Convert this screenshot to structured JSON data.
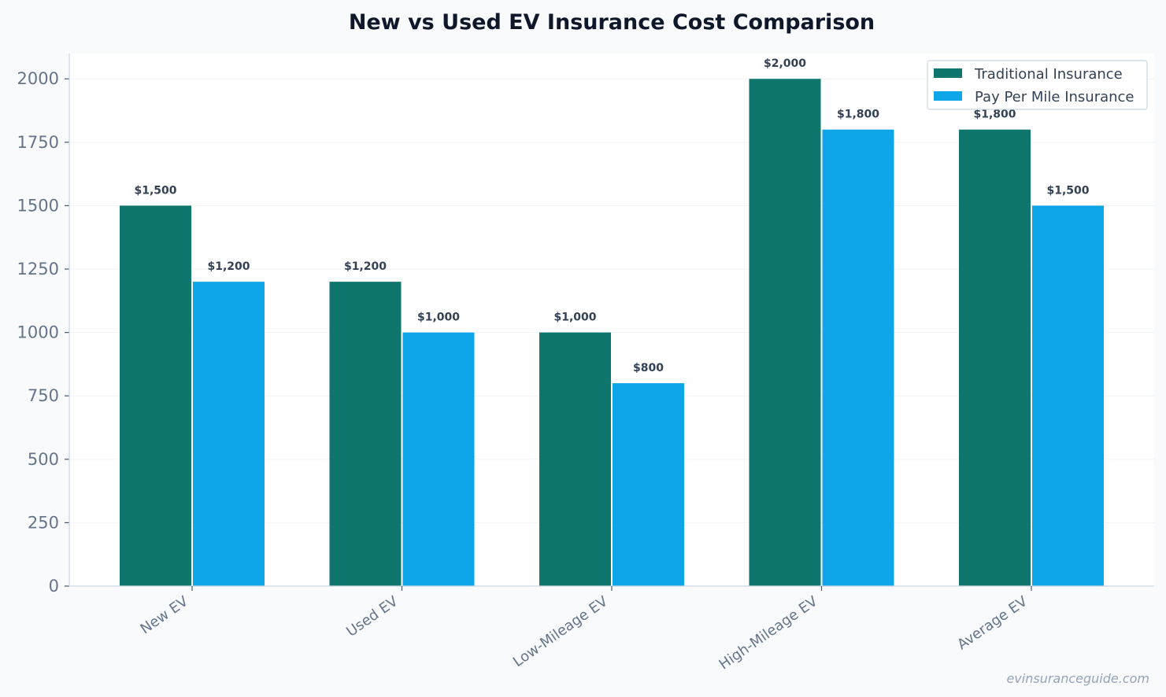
{
  "chart_data": {
    "type": "bar",
    "title": "New vs Used EV Insurance Cost Comparison",
    "categories": [
      "New EV",
      "Used EV",
      "Low-Mileage EV",
      "High-Mileage EV",
      "Average EV"
    ],
    "series": [
      {
        "name": "Traditional Insurance",
        "values": [
          1500,
          1200,
          1000,
          2000,
          1800
        ],
        "color": "#0f766e"
      },
      {
        "name": "Pay Per Mile Insurance",
        "values": [
          1200,
          1000,
          800,
          1800,
          1500
        ],
        "color": "#0ea5e9"
      }
    ],
    "data_labels": [
      [
        "$1,500",
        "$1,200",
        "$1,000",
        "$2,000",
        "$1,800"
      ],
      [
        "$1,200",
        "$1,000",
        "$800",
        "$1,800",
        "$1,500"
      ]
    ],
    "ylim": [
      0,
      2100
    ],
    "yticks": [
      0,
      250,
      500,
      750,
      1000,
      1250,
      1500,
      1750,
      2000
    ],
    "grid": true,
    "legend_position": "top-right",
    "xlabel": "",
    "ylabel": ""
  },
  "watermark": "evinsuranceguide.com",
  "colors": {
    "background": "#f8fafc",
    "plot_background": "#ffffff",
    "axis": "#cbd5e1"
  }
}
